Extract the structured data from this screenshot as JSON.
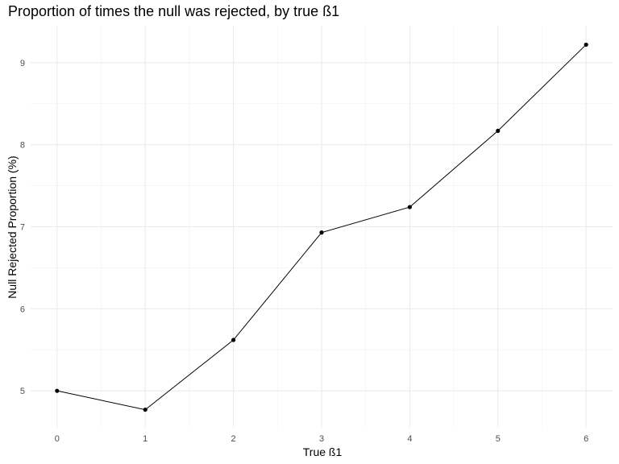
{
  "chart_data": {
    "type": "line",
    "title": "Proportion of times the null was rejected, by true ß1",
    "xlabel": "True ß1",
    "ylabel": "Null Rejected Proportion (%)",
    "x": [
      0,
      1,
      2,
      3,
      4,
      5,
      6
    ],
    "series": [
      {
        "values": [
          5.0,
          4.77,
          5.62,
          6.93,
          7.24,
          8.17,
          9.22
        ],
        "color": "#000000"
      }
    ],
    "xticks": [
      0,
      1,
      2,
      3,
      4,
      5,
      6
    ],
    "yticks": [
      5,
      6,
      7,
      8,
      9
    ],
    "xtick_labels": [
      "0",
      "1",
      "2",
      "3",
      "4",
      "5",
      "6"
    ],
    "ytick_labels": [
      "5",
      "6",
      "7",
      "8",
      "9"
    ],
    "xlim": [
      -0.3,
      6.3
    ],
    "ylim": [
      4.55,
      9.45
    ],
    "grid": true,
    "legend": false
  }
}
